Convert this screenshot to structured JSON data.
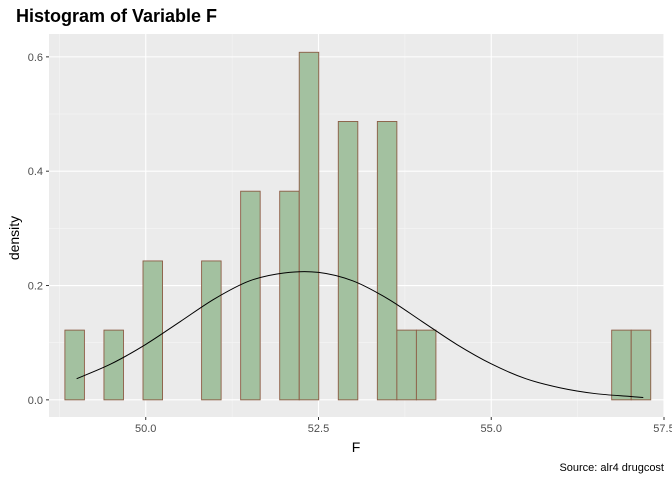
{
  "chart_data": {
    "type": "bar",
    "title": "Histogram of Variable F",
    "xlabel": "F",
    "ylabel": "density",
    "caption": "Source: alr4 drugcost",
    "xlim": [
      48.6,
      57.5
    ],
    "ylim": [
      -0.03,
      0.64
    ],
    "x_ticks": [
      50.0,
      52.5,
      55.0,
      57.5
    ],
    "x_tick_labels": [
      "50.0",
      "52.5",
      "55.0",
      "57.5"
    ],
    "y_ticks": [
      0.0,
      0.2,
      0.4,
      0.6
    ],
    "y_tick_labels": [
      "0.0",
      "0.2",
      "0.4",
      "0.6"
    ],
    "grid": true,
    "bins": {
      "start": 48.83,
      "width": 0.2826,
      "densities": [
        0.122,
        0,
        0.122,
        0,
        0.243,
        0,
        0,
        0.243,
        0,
        0.365,
        0,
        0.365,
        0.608,
        0,
        0.487,
        0,
        0.487,
        0.122,
        0.122,
        0,
        0,
        0,
        0,
        0,
        0,
        0,
        0,
        0,
        0.122,
        0.122
      ]
    },
    "density_curve": {
      "x": [
        49.0,
        49.5,
        50.0,
        50.5,
        51.0,
        51.5,
        52.0,
        52.5,
        53.0,
        53.5,
        54.0,
        54.5,
        55.0,
        55.5,
        56.0,
        56.5,
        57.0,
        57.2
      ],
      "y": [
        0.037,
        0.063,
        0.097,
        0.137,
        0.177,
        0.208,
        0.222,
        0.223,
        0.208,
        0.177,
        0.137,
        0.097,
        0.063,
        0.037,
        0.021,
        0.011,
        0.006,
        0.004
      ]
    },
    "colors": {
      "bar_fill": "#a3c1a0",
      "bar_stroke": "#8c5c44",
      "panel": "#ebebeb",
      "grid_major": "#ffffff",
      "grid_minor": "#f5f5f5",
      "curve": "#000000"
    }
  }
}
